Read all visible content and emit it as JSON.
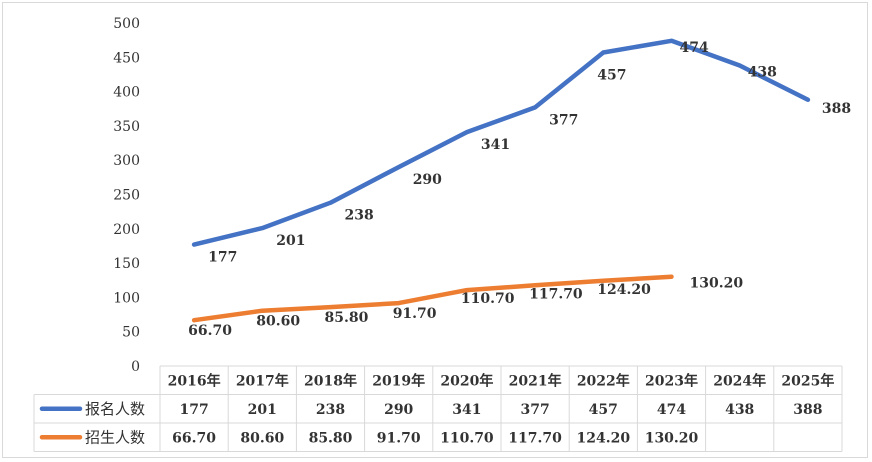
{
  "chart_data": {
    "type": "line",
    "categories": [
      "2016年",
      "2017年",
      "2018年",
      "2019年",
      "2020年",
      "2021年",
      "2022年",
      "2023年",
      "2024年",
      "2025年"
    ],
    "series": [
      {
        "name": "报名人数",
        "color": "#4472C4",
        "values": [
          177,
          201,
          238,
          290,
          341,
          377,
          457,
          474,
          438,
          388
        ],
        "labels": [
          "177",
          "201",
          "238",
          "290",
          "341",
          "377",
          "457",
          "474",
          "438",
          "388"
        ]
      },
      {
        "name": "招生人数",
        "color": "#ED7D31",
        "values": [
          66.7,
          80.6,
          85.8,
          91.7,
          110.7,
          117.7,
          124.2,
          130.2,
          null,
          null
        ],
        "labels": [
          "66.70",
          "80.60",
          "85.80",
          "91.70",
          "110.70",
          "117.70",
          "124.20",
          "130.20",
          "",
          ""
        ]
      }
    ],
    "ylim": [
      0,
      500
    ],
    "yticks": [
      "0",
      "50",
      "100",
      "150",
      "200",
      "250",
      "300",
      "350",
      "400",
      "450",
      "500"
    ],
    "grid": false,
    "legend": "data-table",
    "title": "",
    "xlabel": "",
    "ylabel": ""
  }
}
